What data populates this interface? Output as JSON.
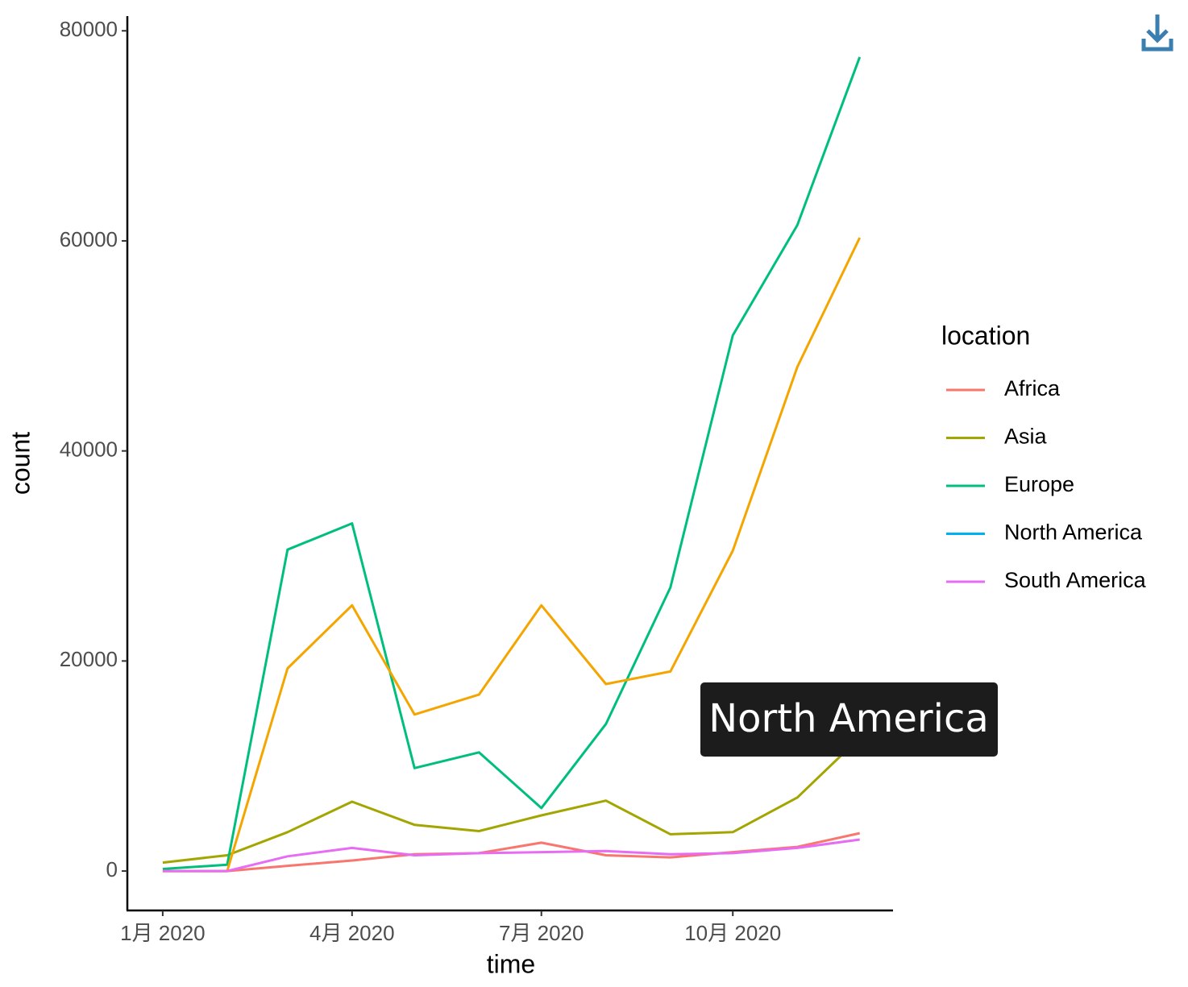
{
  "chart_data": {
    "type": "line",
    "x_label": "time",
    "y_label": "count",
    "legend_title": "location",
    "x": [
      "2020-01",
      "2020-02",
      "2020-03",
      "2020-04",
      "2020-05",
      "2020-06",
      "2020-07",
      "2020-08",
      "2020-09",
      "2020-10",
      "2020-11",
      "2020-12"
    ],
    "series": [
      {
        "name": "Africa",
        "color": "#F8766D",
        "values": [
          0,
          0,
          500,
          1000,
          1600,
          1700,
          2700,
          1500,
          1300,
          1800,
          2300,
          3600
        ]
      },
      {
        "name": "Asia",
        "color": "#A3A500",
        "values": [
          800,
          1500,
          3700,
          6600,
          4400,
          3800,
          5300,
          6700,
          3500,
          3700,
          7000,
          12700
        ]
      },
      {
        "name": "Europe",
        "color": "#00BF7D",
        "values": [
          200,
          600,
          30600,
          33100,
          9800,
          11300,
          6000,
          14000,
          27000,
          51000,
          61500,
          77500
        ]
      },
      {
        "name": "North America",
        "color": "#00B0F6",
        "values": [
          0,
          0,
          19300,
          25300,
          14900,
          16800,
          25300,
          17800,
          19000,
          30500,
          48000,
          60300
        ]
      },
      {
        "name": "South America",
        "color": "#E76BF3",
        "values": [
          0,
          0,
          1400,
          2200,
          1500,
          1700,
          1800,
          1900,
          1600,
          1700,
          2200,
          3000
        ]
      }
    ],
    "xlim": [
      "2019-12-15",
      "2020-12-17"
    ],
    "xticks": [
      {
        "value": "2020-01",
        "label": "1月 2020"
      },
      {
        "value": "2020-04",
        "label": "4月 2020"
      },
      {
        "value": "2020-07",
        "label": "7月 2020"
      },
      {
        "value": "2020-10",
        "label": "10月 2020"
      }
    ],
    "ylim": [
      -3600,
      81400
    ],
    "yticks": [
      0,
      20000,
      40000,
      60000,
      80000
    ],
    "grid": false,
    "legend": "right",
    "tooltip": {
      "label": "North America",
      "color": "#F5A500"
    }
  }
}
